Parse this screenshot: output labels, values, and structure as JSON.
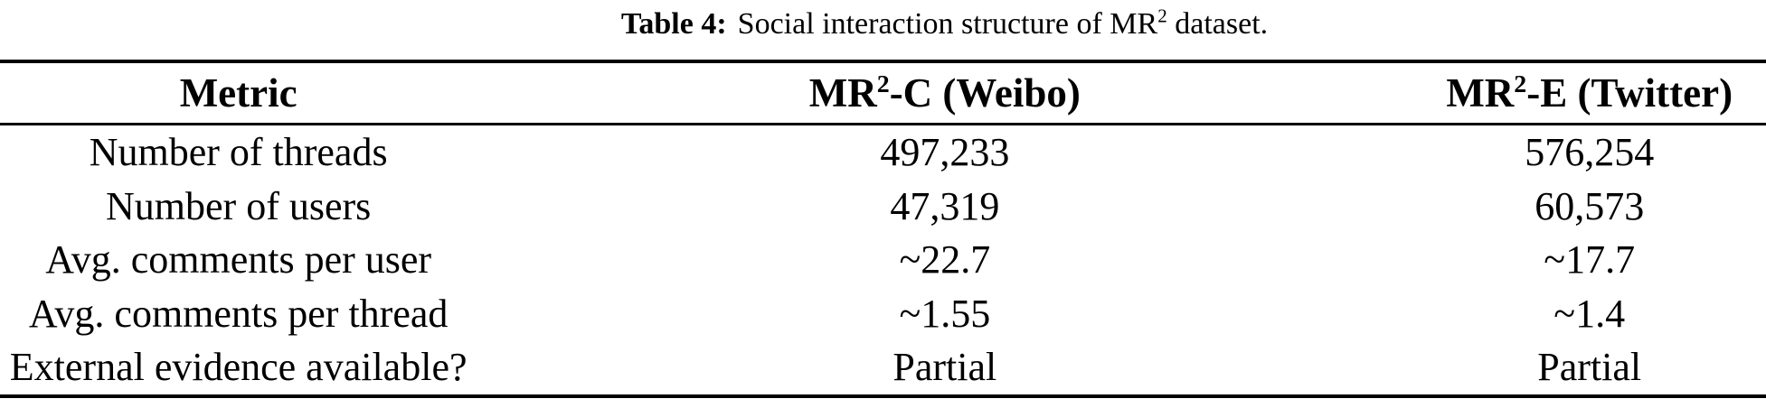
{
  "caption": {
    "label": "Table 4:",
    "text_before_sup": "Social interaction structure of MR",
    "sup": "2",
    "text_after_sup": " dataset."
  },
  "table": {
    "columns": [
      {
        "label": "Metric"
      },
      {
        "prefix": "MR",
        "sup": "2",
        "suffix": "-C (Weibo)"
      },
      {
        "prefix": "MR",
        "sup": "2",
        "suffix": "-E (Twitter)"
      }
    ],
    "rows": [
      {
        "metric": "Number of threads",
        "weibo": "497,233",
        "twitter": "576,254"
      },
      {
        "metric": "Number of users",
        "weibo": "47,319",
        "twitter": "60,573"
      },
      {
        "metric": "Avg. comments per user",
        "weibo": "~22.7",
        "twitter": "~17.7"
      },
      {
        "metric": "Avg. comments per thread",
        "weibo": "~1.55",
        "twitter": "~1.4"
      },
      {
        "metric": "External evidence available?",
        "weibo": "Partial",
        "twitter": "Partial"
      }
    ]
  },
  "colors": {
    "text": "#000000",
    "background": "#ffffff",
    "rule": "#000000"
  }
}
